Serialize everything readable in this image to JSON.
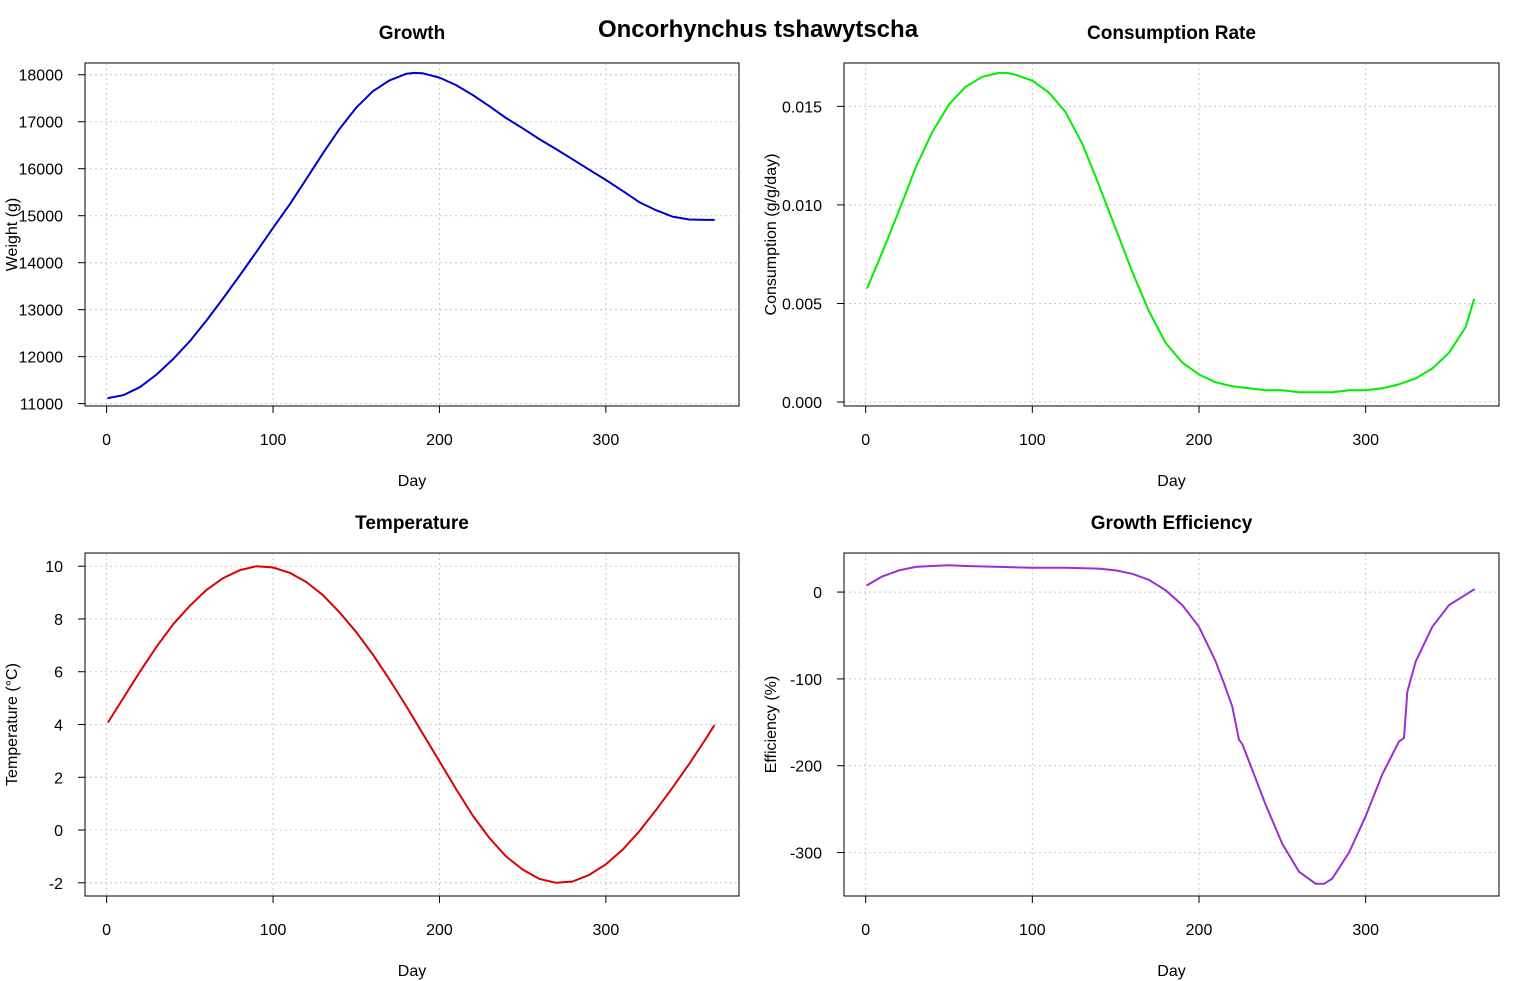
{
  "figure": {
    "title": "Oncorhynchus tshawytscha"
  },
  "chart_data": [
    {
      "type": "line",
      "title": "Growth",
      "xlabel": "Day",
      "ylabel": "Weight (g)",
      "xlim": [
        -13,
        380
      ],
      "ylim": [
        10950,
        18250
      ],
      "xticks": [
        0,
        100,
        200,
        300
      ],
      "yticks": [
        11000,
        12000,
        13000,
        14000,
        15000,
        16000,
        17000,
        18000
      ],
      "grid": true,
      "color": "#0000cc",
      "series": [
        {
          "x": [
            1,
            10,
            20,
            30,
            40,
            50,
            60,
            70,
            80,
            90,
            100,
            110,
            120,
            130,
            140,
            150,
            160,
            170,
            180,
            185,
            190,
            200,
            210,
            220,
            230,
            240,
            250,
            260,
            270,
            280,
            290,
            300,
            310,
            320,
            330,
            340,
            350,
            360,
            365
          ],
          "y": [
            11120,
            11180,
            11350,
            11620,
            11950,
            12330,
            12770,
            13240,
            13730,
            14230,
            14740,
            15240,
            15780,
            16330,
            16850,
            17300,
            17650,
            17880,
            18020,
            18040,
            18030,
            17940,
            17780,
            17570,
            17330,
            17080,
            16860,
            16630,
            16420,
            16200,
            15980,
            15760,
            15530,
            15290,
            15120,
            14980,
            14920,
            14910,
            14910
          ]
        }
      ]
    },
    {
      "type": "line",
      "title": "Consumption Rate",
      "xlabel": "Day",
      "ylabel": "Consumption (g/g/day)",
      "xlim": [
        -13,
        380
      ],
      "ylim": [
        -0.0002,
        0.0172
      ],
      "xticks": [
        0,
        100,
        200,
        300
      ],
      "yticks": [
        0.0,
        0.005,
        0.01,
        0.015
      ],
      "ytick_labels": [
        "0.000",
        "0.005",
        "0.010",
        "0.015"
      ],
      "grid": true,
      "color": "#00ee00",
      "series": [
        {
          "x": [
            1,
            10,
            20,
            30,
            40,
            50,
            60,
            70,
            80,
            85,
            90,
            100,
            110,
            120,
            130,
            140,
            150,
            160,
            170,
            180,
            190,
            200,
            210,
            220,
            230,
            240,
            250,
            260,
            270,
            275,
            280,
            290,
            300,
            310,
            320,
            330,
            340,
            350,
            360,
            365
          ],
          "y": [
            0.0058,
            0.0076,
            0.0097,
            0.0119,
            0.0137,
            0.0151,
            0.016,
            0.0165,
            0.0167,
            0.0167,
            0.0166,
            0.0163,
            0.0157,
            0.0147,
            0.0131,
            0.011,
            0.0088,
            0.0066,
            0.0046,
            0.003,
            0.002,
            0.0014,
            0.001,
            0.0008,
            0.0007,
            0.0006,
            0.0006,
            0.0005,
            0.0005,
            0.0005,
            0.0005,
            0.0006,
            0.0006,
            0.0007,
            0.0009,
            0.0012,
            0.0017,
            0.0025,
            0.0038,
            0.0052
          ]
        }
      ]
    },
    {
      "type": "line",
      "title": "Temperature",
      "xlabel": "Day",
      "ylabel": "Temperature (°C)",
      "xlim": [
        -13,
        380
      ],
      "ylim": [
        -2.5,
        10.5
      ],
      "xticks": [
        0,
        100,
        200,
        300
      ],
      "yticks": [
        -2,
        0,
        2,
        4,
        6,
        8,
        10
      ],
      "grid": true,
      "color": "#dd0000",
      "series": [
        {
          "x": [
            1,
            10,
            20,
            30,
            40,
            50,
            60,
            70,
            80,
            90,
            100,
            110,
            120,
            130,
            140,
            150,
            160,
            170,
            180,
            190,
            200,
            210,
            220,
            230,
            240,
            250,
            260,
            270,
            280,
            290,
            300,
            310,
            320,
            330,
            340,
            350,
            360,
            365
          ],
          "y": [
            4.1,
            5.0,
            6.0,
            6.95,
            7.8,
            8.5,
            9.1,
            9.55,
            9.85,
            10.0,
            9.95,
            9.75,
            9.4,
            8.9,
            8.25,
            7.5,
            6.65,
            5.7,
            4.7,
            3.65,
            2.6,
            1.55,
            0.55,
            -0.3,
            -1.0,
            -1.5,
            -1.85,
            -2.0,
            -1.95,
            -1.7,
            -1.3,
            -0.75,
            -0.05,
            0.75,
            1.6,
            2.5,
            3.45,
            3.95
          ]
        }
      ]
    },
    {
      "type": "line",
      "title": "Growth Efficiency",
      "xlabel": "Day",
      "ylabel": "Efficiency (%)",
      "xlim": [
        -13,
        380
      ],
      "ylim": [
        -350,
        45
      ],
      "xticks": [
        0,
        100,
        200,
        300
      ],
      "yticks": [
        -300,
        -200,
        -100,
        0
      ],
      "grid": true,
      "color": "#9a2fd6",
      "series": [
        {
          "x": [
            1,
            10,
            20,
            30,
            40,
            50,
            60,
            80,
            100,
            120,
            140,
            150,
            160,
            170,
            180,
            190,
            200,
            210,
            215,
            220,
            224,
            226,
            230,
            240,
            250,
            260,
            270,
            275,
            280,
            290,
            300,
            310,
            320,
            323,
            325,
            330,
            340,
            350,
            360,
            365
          ],
          "y": [
            8,
            18,
            25,
            29,
            30,
            31,
            30,
            29,
            28,
            28,
            27,
            25,
            21,
            14,
            2,
            -15,
            -40,
            -80,
            -105,
            -132,
            -170,
            -175,
            -195,
            -245,
            -290,
            -322,
            -336,
            -336,
            -330,
            -300,
            -258,
            -210,
            -172,
            -168,
            -115,
            -80,
            -40,
            -15,
            -3,
            3
          ]
        }
      ]
    }
  ]
}
